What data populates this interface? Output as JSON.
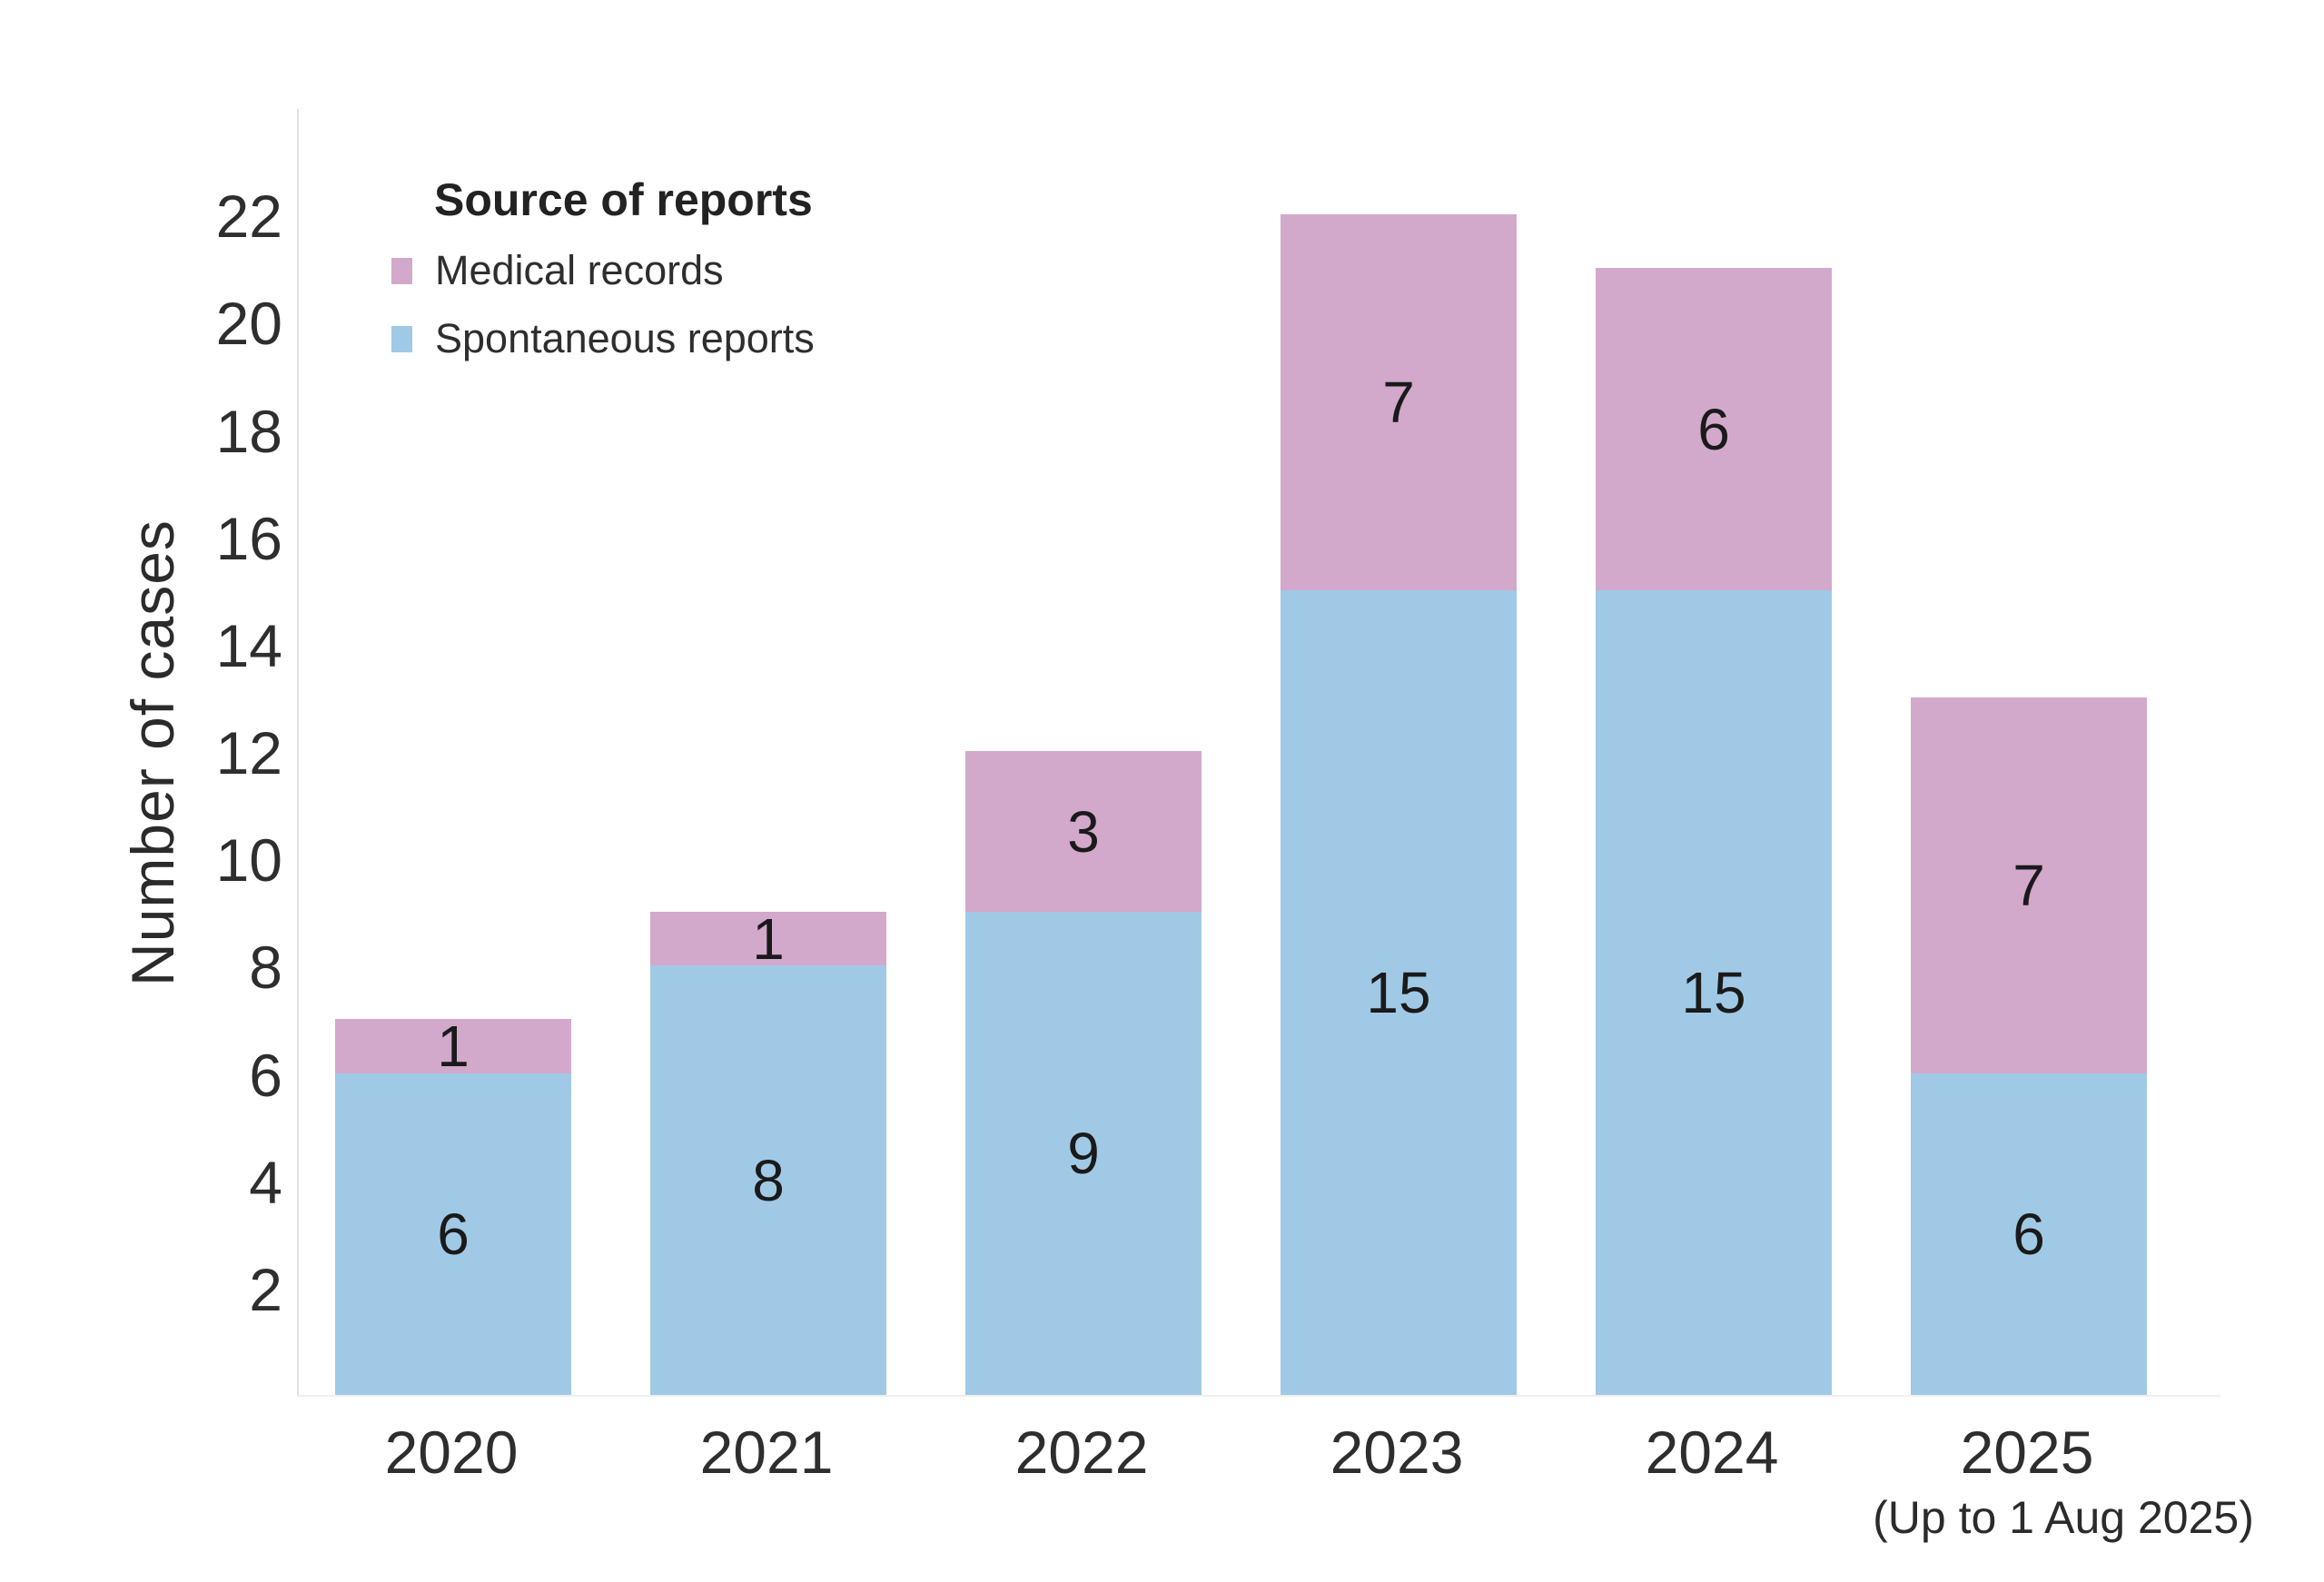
{
  "chart_data": {
    "type": "bar",
    "stacked": true,
    "title": "",
    "xlabel": "",
    "ylabel": "Number of cases",
    "categories": [
      "2020",
      "2021",
      "2022",
      "2023",
      "2024",
      "2025"
    ],
    "x_sublabels": [
      "",
      "",
      "",
      "",
      "",
      "(Up to 1 Aug 2025)"
    ],
    "series": [
      {
        "name": "Spontaneous reports",
        "color": "#A0C9E6",
        "values": [
          6,
          8,
          9,
          15,
          15,
          6
        ]
      },
      {
        "name": "Medical records",
        "color": "#D2A9CB",
        "values": [
          1,
          1,
          3,
          7,
          6,
          7
        ]
      }
    ],
    "totals": [
      7,
      9,
      12,
      22,
      21,
      13
    ],
    "legend_title": "Source of reports",
    "legend_position": "upper-left-inside",
    "yticks": [
      2,
      4,
      6,
      8,
      10,
      12,
      14,
      16,
      18,
      20,
      22
    ],
    "ylim": [
      0,
      24
    ],
    "grid": false,
    "bar_labels": true
  }
}
